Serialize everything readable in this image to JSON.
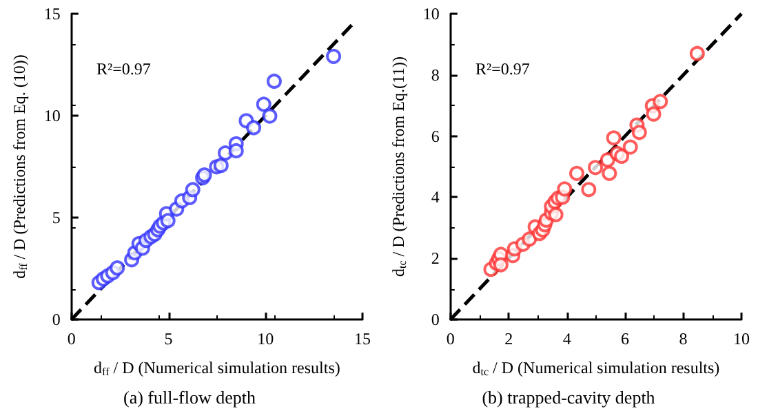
{
  "chart_data": [
    {
      "type": "scatter",
      "xlabel": "d$_{ff}$ / D (Numerical simulation results)",
      "ylabel": "d$_{ff}$ / D (Predictions from Eq. (10))",
      "annotations": [
        "R²=0.97",
        "(a) full-flow depth"
      ],
      "xlim": [
        0,
        15
      ],
      "ylim": [
        0,
        15
      ],
      "xticks": [
        0,
        5,
        10,
        15
      ],
      "yticks": [
        0,
        5,
        10,
        15
      ],
      "series": [
        {
          "color": "#3333ff",
          "marker": "circle",
          "x": [
            1.42,
            1.64,
            1.87,
            2.13,
            2.36,
            3.1,
            3.26,
            3.48,
            3.66,
            3.84,
            4.1,
            4.29,
            4.45,
            4.56,
            4.74,
            4.9,
            4.97,
            5.42,
            5.69,
            6.09,
            6.25,
            6.76,
            6.85,
            7.48,
            7.71,
            7.93,
            8.49,
            8.49,
            9.01,
            9.39,
            9.91,
            10.22,
            10.45,
            13.51
          ],
          "values": [
            1.81,
            1.99,
            2.14,
            2.3,
            2.53,
            2.93,
            3.27,
            3.72,
            3.5,
            3.88,
            4.06,
            4.18,
            4.4,
            4.58,
            4.74,
            5.19,
            4.85,
            5.42,
            5.82,
            5.98,
            6.37,
            6.95,
            7.09,
            7.49,
            7.56,
            8.17,
            8.62,
            8.28,
            9.75,
            9.41,
            10.56,
            9.98,
            11.69,
            12.91
          ]
        },
        {
          "type": "line",
          "color": "#000000",
          "line_style": "dashed",
          "marker": "none",
          "x": [
            0,
            14.6
          ],
          "values": [
            0,
            14.6
          ]
        }
      ]
    },
    {
      "type": "scatter",
      "xlabel": "d$_{tc}$ / D (Numerical simulation results)",
      "ylabel": "d$_{tc}$ / D (Predictions from Eq.(11))",
      "annotations": [
        "R²=0.97",
        "(b) trapped-cavity depth"
      ],
      "xlim": [
        0,
        10
      ],
      "ylim": [
        0,
        10
      ],
      "xticks": [
        0,
        2,
        4,
        6,
        8,
        10
      ],
      "yticks": [
        0,
        2,
        4,
        6,
        8,
        10
      ],
      "series": [
        {
          "color": "#ff3333",
          "marker": "circle",
          "x": [
            1.39,
            1.58,
            1.66,
            1.73,
            1.73,
            2.14,
            2.2,
            2.49,
            2.71,
            2.91,
            3.06,
            3.17,
            3.24,
            3.29,
            3.47,
            3.47,
            3.59,
            3.62,
            3.7,
            3.85,
            3.92,
            4.34,
            4.75,
            4.98,
            5.4,
            5.46,
            5.61,
            5.73,
            5.88,
            6.18,
            6.41,
            6.49,
            6.94,
            6.98,
            7.21,
            8.48
          ],
          "values": [
            1.64,
            1.84,
            1.99,
            2.13,
            1.79,
            2.09,
            2.31,
            2.46,
            2.63,
            3.03,
            2.81,
            2.93,
            3.1,
            3.25,
            3.48,
            3.7,
            3.85,
            3.43,
            3.97,
            4.0,
            4.27,
            4.78,
            4.25,
            4.97,
            5.22,
            4.78,
            5.94,
            5.43,
            5.34,
            5.64,
            6.36,
            6.12,
            6.99,
            6.72,
            7.13,
            8.7
          ]
        },
        {
          "type": "line",
          "color": "#000000",
          "line_style": "dashed",
          "marker": "none",
          "x": [
            0,
            10
          ],
          "values": [
            0,
            10
          ]
        }
      ]
    }
  ]
}
